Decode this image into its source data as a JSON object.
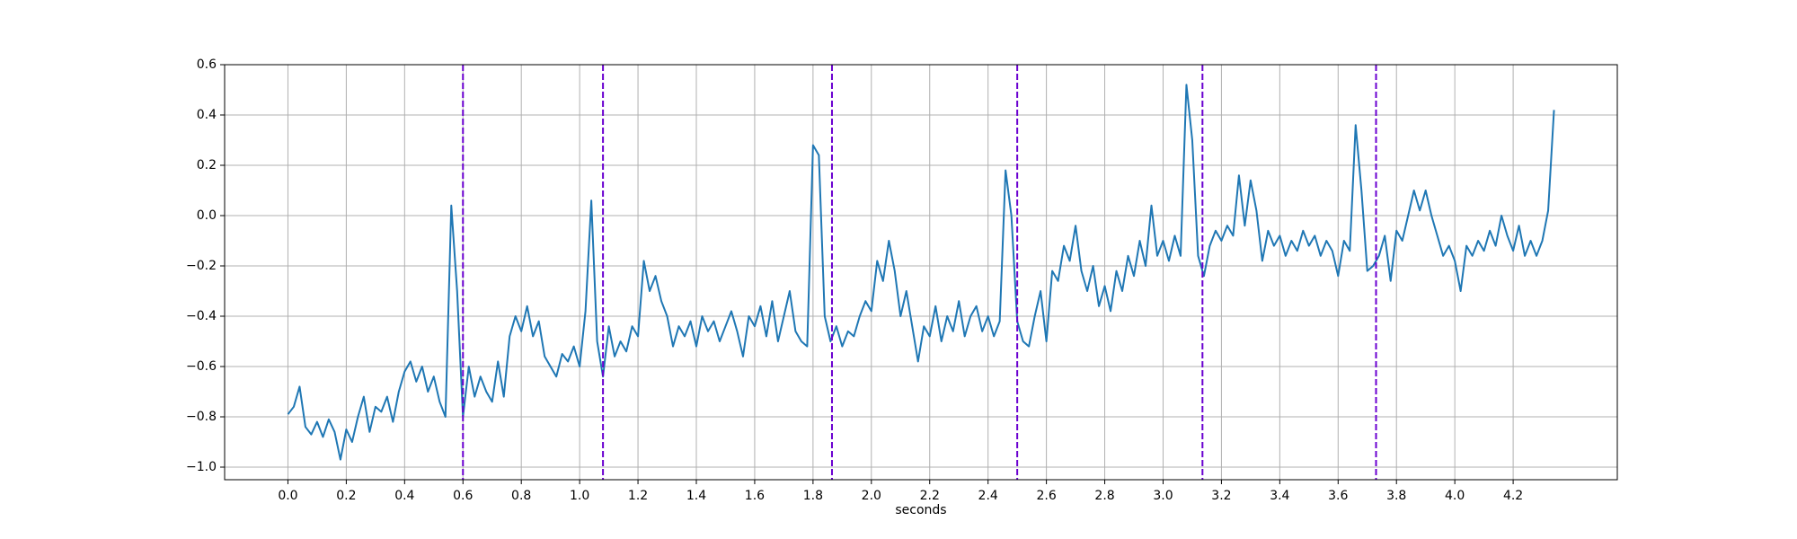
{
  "chart_data": {
    "type": "line",
    "xlabel": "seconds",
    "x": [
      0.0,
      0.02,
      0.04,
      0.06,
      0.08,
      0.1,
      0.12,
      0.14,
      0.16,
      0.18,
      0.2,
      0.22,
      0.24,
      0.26,
      0.28,
      0.3,
      0.32,
      0.34,
      0.36,
      0.38,
      0.4,
      0.42,
      0.44,
      0.46,
      0.48,
      0.5,
      0.52,
      0.54,
      0.56,
      0.58,
      0.6,
      0.62,
      0.64,
      0.66,
      0.68,
      0.7,
      0.72,
      0.74,
      0.76,
      0.78,
      0.8,
      0.82,
      0.84,
      0.86,
      0.88,
      0.9,
      0.92,
      0.94,
      0.96,
      0.98,
      1.0,
      1.02,
      1.04,
      1.06,
      1.08,
      1.1,
      1.12,
      1.14,
      1.16,
      1.18,
      1.2,
      1.22,
      1.24,
      1.26,
      1.28,
      1.3,
      1.32,
      1.34,
      1.36,
      1.38,
      1.4,
      1.42,
      1.44,
      1.46,
      1.48,
      1.5,
      1.52,
      1.54,
      1.56,
      1.58,
      1.6,
      1.62,
      1.64,
      1.66,
      1.68,
      1.7,
      1.72,
      1.74,
      1.76,
      1.78,
      1.8,
      1.82,
      1.84,
      1.86,
      1.88,
      1.9,
      1.92,
      1.94,
      1.96,
      1.98,
      2.0,
      2.02,
      2.04,
      2.06,
      2.08,
      2.1,
      2.12,
      2.14,
      2.16,
      2.18,
      2.2,
      2.22,
      2.24,
      2.26,
      2.28,
      2.3,
      2.32,
      2.34,
      2.36,
      2.38,
      2.4,
      2.42,
      2.44,
      2.46,
      2.48,
      2.5,
      2.52,
      2.54,
      2.56,
      2.58,
      2.6,
      2.62,
      2.64,
      2.66,
      2.68,
      2.7,
      2.72,
      2.74,
      2.76,
      2.78,
      2.8,
      2.82,
      2.84,
      2.86,
      2.88,
      2.9,
      2.92,
      2.94,
      2.96,
      2.98,
      3.0,
      3.02,
      3.04,
      3.06,
      3.08,
      3.1,
      3.12,
      3.14,
      3.16,
      3.18,
      3.2,
      3.22,
      3.24,
      3.26,
      3.28,
      3.3,
      3.32,
      3.34,
      3.36,
      3.38,
      3.4,
      3.42,
      3.44,
      3.46,
      3.48,
      3.5,
      3.52,
      3.54,
      3.56,
      3.58,
      3.6,
      3.62,
      3.64,
      3.66,
      3.68,
      3.7,
      3.72,
      3.74,
      3.76,
      3.78,
      3.8,
      3.82,
      3.84,
      3.86,
      3.88,
      3.9,
      3.92,
      3.94,
      3.96,
      3.98,
      4.0,
      4.02,
      4.04,
      4.06,
      4.08,
      4.1,
      4.12,
      4.14,
      4.16,
      4.18,
      4.2,
      4.22,
      4.24,
      4.26,
      4.28,
      4.3,
      4.32,
      4.34
    ],
    "series": [
      {
        "color": "#1f77b4",
        "values": [
          -0.79,
          -0.76,
          -0.68,
          -0.84,
          -0.87,
          -0.82,
          -0.88,
          -0.81,
          -0.86,
          -0.97,
          -0.85,
          -0.9,
          -0.8,
          -0.72,
          -0.86,
          -0.76,
          -0.78,
          -0.72,
          -0.82,
          -0.7,
          -0.62,
          -0.58,
          -0.66,
          -0.6,
          -0.7,
          -0.64,
          -0.74,
          -0.8,
          0.04,
          -0.3,
          -0.8,
          -0.6,
          -0.72,
          -0.64,
          -0.7,
          -0.74,
          -0.58,
          -0.72,
          -0.48,
          -0.4,
          -0.46,
          -0.36,
          -0.48,
          -0.42,
          -0.56,
          -0.6,
          -0.64,
          -0.55,
          -0.58,
          -0.52,
          -0.6,
          -0.38,
          0.06,
          -0.5,
          -0.64,
          -0.44,
          -0.56,
          -0.5,
          -0.54,
          -0.44,
          -0.48,
          -0.18,
          -0.3,
          -0.24,
          -0.34,
          -0.4,
          -0.52,
          -0.44,
          -0.48,
          -0.42,
          -0.52,
          -0.4,
          -0.46,
          -0.42,
          -0.5,
          -0.44,
          -0.38,
          -0.46,
          -0.56,
          -0.4,
          -0.44,
          -0.36,
          -0.48,
          -0.34,
          -0.5,
          -0.4,
          -0.3,
          -0.46,
          -0.5,
          -0.52,
          0.28,
          0.24,
          -0.4,
          -0.5,
          -0.44,
          -0.52,
          -0.46,
          -0.48,
          -0.4,
          -0.34,
          -0.38,
          -0.18,
          -0.26,
          -0.1,
          -0.22,
          -0.4,
          -0.3,
          -0.44,
          -0.58,
          -0.44,
          -0.48,
          -0.36,
          -0.5,
          -0.4,
          -0.46,
          -0.34,
          -0.48,
          -0.4,
          -0.36,
          -0.46,
          -0.4,
          -0.48,
          -0.42,
          0.18,
          0.0,
          -0.42,
          -0.5,
          -0.52,
          -0.4,
          -0.3,
          -0.5,
          -0.22,
          -0.26,
          -0.12,
          -0.18,
          -0.04,
          -0.22,
          -0.3,
          -0.2,
          -0.36,
          -0.28,
          -0.38,
          -0.22,
          -0.3,
          -0.16,
          -0.24,
          -0.1,
          -0.2,
          0.04,
          -0.16,
          -0.1,
          -0.18,
          -0.08,
          -0.16,
          0.52,
          0.3,
          -0.16,
          -0.24,
          -0.12,
          -0.06,
          -0.1,
          -0.04,
          -0.08,
          0.16,
          -0.04,
          0.14,
          0.02,
          -0.18,
          -0.06,
          -0.12,
          -0.08,
          -0.16,
          -0.1,
          -0.14,
          -0.06,
          -0.12,
          -0.08,
          -0.16,
          -0.1,
          -0.14,
          -0.24,
          -0.1,
          -0.14,
          0.36,
          0.1,
          -0.22,
          -0.2,
          -0.16,
          -0.08,
          -0.26,
          -0.06,
          -0.1,
          0.0,
          0.1,
          0.02,
          0.1,
          0.0,
          -0.08,
          -0.16,
          -0.12,
          -0.18,
          -0.3,
          -0.12,
          -0.16,
          -0.1,
          -0.14,
          -0.06,
          -0.12,
          0.0,
          -0.08,
          -0.14,
          -0.04,
          -0.16,
          -0.1,
          -0.16,
          -0.1,
          0.02,
          0.42
        ]
      }
    ],
    "vlines": [
      0.6,
      1.08,
      1.865,
      2.5,
      3.135,
      3.73
    ],
    "vline_color": "#6a00d0",
    "xlim": [
      -0.217,
      4.557
    ],
    "ylim": [
      -1.05,
      0.6
    ],
    "xticks": [
      {
        "value": 0,
        "label": "0.0"
      },
      0.2,
      0.4,
      0.6,
      0.8,
      {
        "value": 1,
        "label": "1.0"
      },
      1.2,
      1.4,
      1.6,
      1.8,
      {
        "value": 2,
        "label": "2.0"
      },
      2.2,
      2.4,
      2.6,
      2.8,
      {
        "value": 3,
        "label": "3.0"
      },
      3.2,
      3.4,
      3.6,
      3.8,
      {
        "value": 4,
        "label": "4.0"
      },
      4.2
    ],
    "yticks": [
      {
        "value": -1,
        "label": "−1.0"
      },
      {
        "value": -0.8,
        "label": "−0.8"
      },
      {
        "value": -0.6,
        "label": "−0.6"
      },
      {
        "value": -0.4,
        "label": "−0.4"
      },
      {
        "value": -0.2,
        "label": "−0.2"
      },
      {
        "value": 0,
        "label": "0.0"
      },
      0.2,
      0.4,
      0.6
    ],
    "grid": true
  }
}
